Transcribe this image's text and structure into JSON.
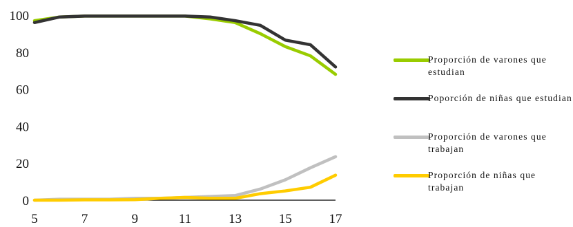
{
  "chart_data": {
    "type": "line",
    "x": [
      5,
      6,
      7,
      8,
      9,
      10,
      11,
      12,
      13,
      14,
      15,
      16,
      17
    ],
    "xticks": [
      5,
      7,
      9,
      11,
      13,
      15,
      17
    ],
    "yticks": [
      0,
      20,
      40,
      60,
      80,
      100
    ],
    "xlim": [
      5,
      17
    ],
    "ylim": [
      0,
      100
    ],
    "grid": false,
    "legend_position": "right",
    "series": [
      {
        "name": "Proporción de varones que estudian",
        "color": "#99cc00",
        "values": [
          97,
          99,
          99.5,
          99.5,
          99.5,
          99.5,
          99.5,
          98,
          96,
          90,
          83,
          78,
          68
        ]
      },
      {
        "name": "Poporción de niñas que estudian",
        "color": "#333333",
        "values": [
          96,
          99,
          99.5,
          99.5,
          99.5,
          99.5,
          99.5,
          99,
          97,
          94.5,
          86.5,
          84,
          72
        ]
      },
      {
        "name": "Proporción de varones que trabajan",
        "color": "#c0c0c0",
        "values": [
          0,
          0.5,
          0.5,
          0.5,
          1,
          1,
          1.5,
          2,
          2.5,
          6,
          11,
          17.5,
          23.5
        ]
      },
      {
        "name": "Proporción de niñas que trabajan",
        "color": "#ffcc00",
        "values": [
          0,
          0,
          0.2,
          0.2,
          0.3,
          1,
          1.5,
          1,
          1,
          3.5,
          5,
          7,
          13.5
        ]
      }
    ]
  }
}
